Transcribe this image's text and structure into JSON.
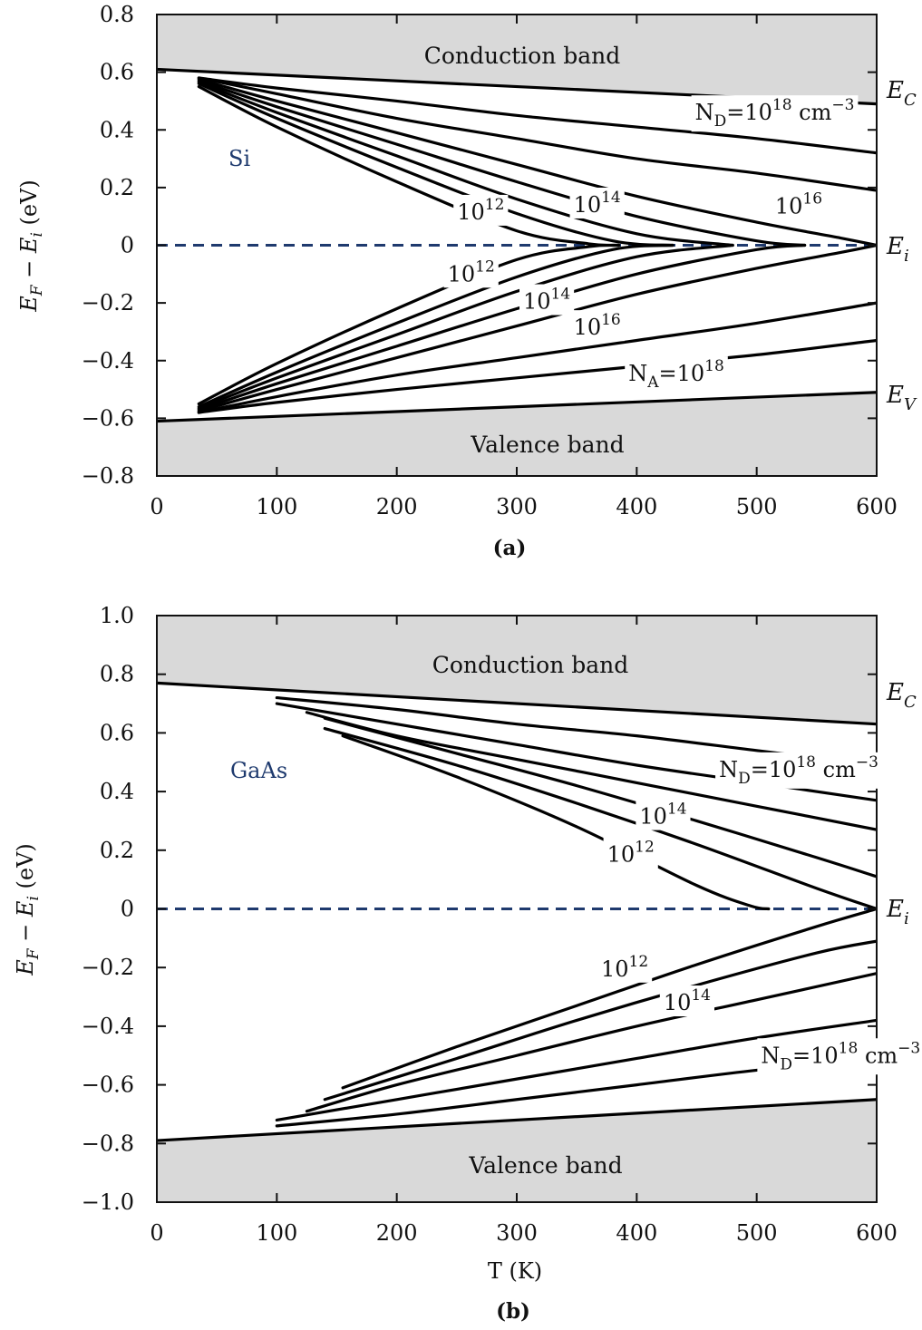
{
  "chart_data": [
    {
      "type": "line",
      "panel_label": "(a)",
      "material": "Si",
      "xlim": [
        0,
        600
      ],
      "ylim": [
        -0.8,
        0.8
      ],
      "xticks": [
        "0",
        "100",
        "200",
        "300",
        "400",
        "500",
        "600"
      ],
      "yticks": [
        "0.8",
        "0.6",
        "0.4",
        "0.2",
        "0",
        "−0.2",
        "−0.4",
        "−0.6",
        "−0.8"
      ],
      "ytick_values": [
        0.8,
        0.6,
        0.4,
        0.2,
        0,
        -0.2,
        -0.4,
        -0.6,
        -0.8
      ],
      "ylabel": "E_F − E_i (eV)",
      "conduction_band_label": "Conduction band",
      "valence_band_label": "Valence band",
      "right_labels": {
        "ec": "E_C",
        "ei": "E_i",
        "ev": "E_V"
      },
      "conduction_edge": {
        "x": [
          0,
          600
        ],
        "y": [
          0.61,
          0.49
        ]
      },
      "valence_edge": {
        "x": [
          0,
          600
        ],
        "y": [
          -0.61,
          -0.51
        ]
      },
      "intrinsic_level": {
        "x": [
          0,
          600
        ],
        "y": [
          0,
          0
        ]
      },
      "series": [
        {
          "x": [
            35,
            100,
            200,
            300,
            360,
            385
          ],
          "y": [
            0.55,
            0.41,
            0.22,
            0.05,
            0.005,
            0.0
          ]
        },
        {
          "x": [
            35,
            100,
            200,
            300,
            380,
            430
          ],
          "y": [
            0.56,
            0.44,
            0.27,
            0.11,
            0.015,
            0.0
          ]
        },
        {
          "x": [
            35,
            100,
            200,
            300,
            400,
            480
          ],
          "y": [
            0.565,
            0.46,
            0.31,
            0.16,
            0.04,
            0.0
          ]
        },
        {
          "x": [
            35,
            100,
            200,
            300,
            400,
            500,
            540
          ],
          "y": [
            0.57,
            0.48,
            0.35,
            0.22,
            0.1,
            0.015,
            0.0
          ]
        },
        {
          "x": [
            35,
            100,
            200,
            300,
            400,
            500,
            570,
            600
          ],
          "y": [
            0.575,
            0.5,
            0.39,
            0.28,
            0.17,
            0.08,
            0.025,
            0.0
          ]
        },
        {
          "x": [
            35,
            100,
            200,
            300,
            400,
            500,
            600
          ],
          "y": [
            0.58,
            0.525,
            0.44,
            0.37,
            0.3,
            0.25,
            0.19
          ]
        },
        {
          "x": [
            35,
            100,
            200,
            300,
            400,
            500,
            600
          ],
          "y": [
            0.58,
            0.545,
            0.5,
            0.45,
            0.41,
            0.37,
            0.32
          ]
        },
        {
          "x": [
            35,
            100,
            200,
            300,
            360,
            385
          ],
          "y": [
            -0.55,
            -0.41,
            -0.22,
            -0.05,
            -0.005,
            0.0
          ]
        },
        {
          "x": [
            35,
            100,
            200,
            300,
            380,
            430
          ],
          "y": [
            -0.56,
            -0.44,
            -0.27,
            -0.11,
            -0.015,
            0.0
          ]
        },
        {
          "x": [
            35,
            100,
            200,
            300,
            400,
            480
          ],
          "y": [
            -0.565,
            -0.46,
            -0.31,
            -0.16,
            -0.04,
            0.0
          ]
        },
        {
          "x": [
            35,
            100,
            200,
            300,
            400,
            500,
            540
          ],
          "y": [
            -0.57,
            -0.48,
            -0.35,
            -0.22,
            -0.1,
            -0.015,
            0.0
          ]
        },
        {
          "x": [
            35,
            100,
            200,
            300,
            400,
            500,
            570,
            600
          ],
          "y": [
            -0.575,
            -0.5,
            -0.39,
            -0.28,
            -0.17,
            -0.08,
            -0.025,
            0.0
          ]
        },
        {
          "x": [
            35,
            100,
            200,
            300,
            400,
            500,
            600
          ],
          "y": [
            -0.58,
            -0.525,
            -0.45,
            -0.39,
            -0.33,
            -0.27,
            -0.2
          ]
        },
        {
          "x": [
            35,
            100,
            200,
            300,
            400,
            500,
            600
          ],
          "y": [
            -0.58,
            -0.545,
            -0.5,
            -0.46,
            -0.42,
            -0.38,
            -0.33
          ]
        }
      ],
      "annotations": [
        {
          "text": "N_D=10^18 cm^-3",
          "x": 515,
          "y": 0.46
        },
        {
          "text": "10^16",
          "x": 535,
          "y": 0.135
        },
        {
          "text": "10^14",
          "x": 367,
          "y": 0.14
        },
        {
          "text": "10^12",
          "x": 270,
          "y": 0.115
        },
        {
          "text": "10^12",
          "x": 262,
          "y": -0.1
        },
        {
          "text": "10^14",
          "x": 325,
          "y": -0.195
        },
        {
          "text": "10^16",
          "x": 367,
          "y": -0.285
        },
        {
          "text": "N_A=10^18",
          "x": 433,
          "y": -0.445
        }
      ]
    },
    {
      "type": "line",
      "panel_label": "(b)",
      "material": "GaAs",
      "xlim": [
        0,
        600
      ],
      "ylim": [
        -1.0,
        1.0
      ],
      "xticks": [
        "0",
        "100",
        "200",
        "300",
        "400",
        "500",
        "600"
      ],
      "yticks": [
        "1.0",
        "0.8",
        "0.6",
        "0.4",
        "0.2",
        "0",
        "−0.2",
        "−0.4",
        "−0.6",
        "−0.8",
        "−1.0"
      ],
      "ytick_values": [
        1.0,
        0.8,
        0.6,
        0.4,
        0.2,
        0,
        -0.2,
        -0.4,
        -0.6,
        -0.8,
        -1.0
      ],
      "xlabel": "T (K)",
      "ylabel": "E_F − E_i (eV)",
      "conduction_band_label": "Conduction band",
      "valence_band_label": "Valence band",
      "right_labels": {
        "ec": "E_C",
        "ei": "E_i"
      },
      "conduction_edge": {
        "x": [
          0,
          600
        ],
        "y": [
          0.77,
          0.63
        ]
      },
      "valence_edge": {
        "x": [
          0,
          600
        ],
        "y": [
          -0.79,
          -0.65
        ]
      },
      "intrinsic_level": {
        "x": [
          0,
          600
        ],
        "y": [
          0,
          0
        ]
      },
      "series": [
        {
          "x": [
            155,
            250,
            350,
            450,
            495,
            510
          ],
          "y": [
            0.59,
            0.45,
            0.28,
            0.08,
            0.01,
            0.0
          ]
        },
        {
          "x": [
            140,
            250,
            350,
            450,
            550,
            600
          ],
          "y": [
            0.615,
            0.49,
            0.36,
            0.22,
            0.07,
            0.0
          ]
        },
        {
          "x": [
            140,
            250,
            350,
            450,
            550,
            600
          ],
          "y": [
            0.65,
            0.53,
            0.42,
            0.3,
            0.175,
            0.11
          ]
        },
        {
          "x": [
            125,
            200,
            300,
            400,
            500,
            600
          ],
          "y": [
            0.67,
            0.59,
            0.51,
            0.43,
            0.35,
            0.27
          ]
        },
        {
          "x": [
            100,
            200,
            300,
            400,
            500,
            600
          ],
          "y": [
            0.7,
            0.63,
            0.56,
            0.49,
            0.43,
            0.37
          ]
        },
        {
          "x": [
            100,
            200,
            300,
            400,
            500,
            600
          ],
          "y": [
            0.72,
            0.68,
            0.63,
            0.59,
            0.54,
            0.49
          ]
        },
        {
          "x": [
            155,
            250,
            350,
            450,
            550,
            600
          ],
          "y": [
            -0.61,
            -0.47,
            -0.33,
            -0.19,
            -0.06,
            0.0
          ]
        },
        {
          "x": [
            140,
            250,
            350,
            450,
            550,
            600
          ],
          "y": [
            -0.65,
            -0.51,
            -0.38,
            -0.26,
            -0.15,
            -0.11
          ]
        },
        {
          "x": [
            125,
            200,
            300,
            400,
            500,
            600
          ],
          "y": [
            -0.69,
            -0.6,
            -0.5,
            -0.4,
            -0.31,
            -0.22
          ]
        },
        {
          "x": [
            100,
            200,
            300,
            400,
            500,
            600
          ],
          "y": [
            -0.72,
            -0.65,
            -0.58,
            -0.51,
            -0.44,
            -0.38
          ]
        },
        {
          "x": [
            100,
            200,
            300,
            400,
            500,
            600
          ],
          "y": [
            -0.74,
            -0.7,
            -0.65,
            -0.6,
            -0.55,
            -0.51
          ]
        }
      ],
      "annotations": [
        {
          "text": "N_D=10^18 cm^-3",
          "x": 535,
          "y": 0.475
        },
        {
          "text": "10^14",
          "x": 422,
          "y": 0.315
        },
        {
          "text": "10^12",
          "x": 395,
          "y": 0.185
        },
        {
          "text": "10^12",
          "x": 390,
          "y": -0.205
        },
        {
          "text": "10^14",
          "x": 442,
          "y": -0.32
        },
        {
          "text": "N_D=10^18 cm^-3",
          "x": 570,
          "y": -0.5
        }
      ]
    }
  ]
}
